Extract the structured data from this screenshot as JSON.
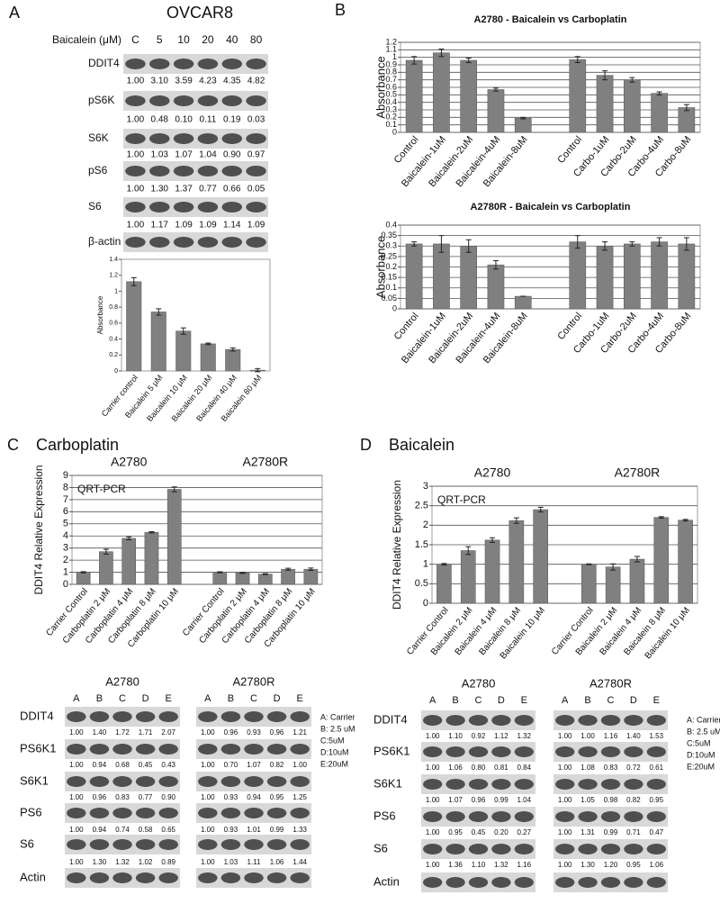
{
  "panels": [
    {
      "letter": "A",
      "title": "OVCAR8"
    },
    {
      "letter": "B"
    },
    {
      "letter": "C",
      "title": "Carboplatin"
    },
    {
      "letter": "D",
      "title": "Baicalein"
    }
  ],
  "blot_A": {
    "treatment": "Baicalein (μM)",
    "lanes": [
      "C",
      "5",
      "10",
      "20",
      "40",
      "80"
    ],
    "rows": [
      {
        "label": "DDIT4",
        "quant": [
          "1.00",
          "3.10",
          "3.59",
          "4.23",
          "4.35",
          "4.82"
        ]
      },
      {
        "label": "pS6K",
        "quant": [
          "1.00",
          "0.48",
          "0.10",
          "0.11",
          "0.19",
          "0.03"
        ]
      },
      {
        "label": "S6K",
        "quant": [
          "1.00",
          "1.03",
          "1.07",
          "1.04",
          "0.90",
          "0.97"
        ]
      },
      {
        "label": "pS6",
        "quant": [
          "1.00",
          "1.30",
          "1.37",
          "0.77",
          "0.66",
          "0.05"
        ]
      },
      {
        "label": "S6",
        "quant": [
          "1.00",
          "1.17",
          "1.09",
          "1.09",
          "1.14",
          "1.09"
        ]
      },
      {
        "label": "β-actin"
      }
    ]
  },
  "blot_C": {
    "row_labels": [
      "DDIT4",
      "PS6K1",
      "S6K1",
      "PS6",
      "S6",
      "Actin"
    ],
    "groups": [
      {
        "name": "A2780",
        "lanes": [
          "A",
          "B",
          "C",
          "D",
          "E"
        ],
        "quant": [
          [
            "1.00",
            "1.40",
            "1.72",
            "1.71",
            "2.07"
          ],
          [
            "1.00",
            "0.94",
            "0.68",
            "0.45",
            "0.43"
          ],
          [
            "1.00",
            "0.96",
            "0.83",
            "0.77",
            "0.90"
          ],
          [
            "1.00",
            "0.94",
            "0.74",
            "0.58",
            "0.65"
          ],
          [
            "1.00",
            "1.30",
            "1.32",
            "1.02",
            "0.89"
          ]
        ]
      },
      {
        "name": "A2780R",
        "lanes": [
          "A",
          "B",
          "C",
          "D",
          "E"
        ],
        "quant": [
          [
            "1.00",
            "0.96",
            "0.93",
            "0.96",
            "1.21"
          ],
          [
            "1.00",
            "0.70",
            "1.07",
            "0.82",
            "1.00"
          ],
          [
            "1.00",
            "0.93",
            "0.94",
            "0.95",
            "1.25"
          ],
          [
            "1.00",
            "0.93",
            "1.01",
            "0.99",
            "1.33"
          ],
          [
            "1.00",
            "1.03",
            "1.11",
            "1.06",
            "1.44"
          ]
        ]
      }
    ],
    "key": [
      "A: Carrier",
      "B: 2.5 uM",
      "C:5uM",
      "D:10uM",
      "E:20uM"
    ]
  },
  "blot_D": {
    "row_labels": [
      "DDIT4",
      "PS6K1",
      "S6K1",
      "PS6",
      "S6",
      "Actin"
    ],
    "groups": [
      {
        "name": "A2780",
        "lanes": [
          "A",
          "B",
          "C",
          "D",
          "E"
        ],
        "quant": [
          [
            "1.00",
            "1.10",
            "0.92",
            "1.12",
            "1.32"
          ],
          [
            "1.00",
            "1.06",
            "0.80",
            "0.81",
            "0.84"
          ],
          [
            "1.00",
            "1.07",
            "0.96",
            "0.99",
            "1.04"
          ],
          [
            "1.00",
            "0.95",
            "0.45",
            "0.20",
            "0.27"
          ],
          [
            "1.00",
            "1.36",
            "1.10",
            "1.32",
            "1.16"
          ]
        ]
      },
      {
        "name": "A2780R",
        "lanes": [
          "A",
          "B",
          "C",
          "D",
          "E"
        ],
        "quant": [
          [
            "1.00",
            "1.00",
            "1.16",
            "1.40",
            "1.53"
          ],
          [
            "1.00",
            "1.08",
            "0.83",
            "0.72",
            "0.61"
          ],
          [
            "1.00",
            "1.05",
            "0.98",
            "0.82",
            "0.95"
          ],
          [
            "1.00",
            "1.31",
            "0.99",
            "0.71",
            "0.47"
          ],
          [
            "1.00",
            "1.30",
            "1.20",
            "0.95",
            "1.06"
          ]
        ]
      }
    ],
    "key": [
      "A: Carrier",
      "B: 2.5 uM",
      "C:5uM",
      "D:10uM",
      "E:20uM"
    ]
  },
  "chart_data": [
    {
      "type": "bar",
      "ylabel": "Absorbance",
      "categories": [
        "Carrier control",
        "Baicalein 5 μM",
        "Baicalein 10 μM",
        "Baicalein 20 μM",
        "Baicalein 40 μM",
        "Baicalein 80 μM"
      ],
      "values": [
        1.12,
        0.74,
        0.5,
        0.34,
        0.27,
        0.01
      ],
      "errors": [
        0.05,
        0.04,
        0.04,
        0.01,
        0.02,
        0.02
      ],
      "color": "#808080",
      "ylim": [
        0,
        1.4
      ],
      "yticks": [
        0,
        0.2,
        0.4,
        0.6,
        0.8,
        1,
        1.2,
        1.4
      ],
      "grid": false
    },
    {
      "type": "bar",
      "title": "A2780 - Baicalein vs Carboplatin",
      "ylabel": "Absorbance",
      "categories": [
        "Control",
        "Baicalein-1uM",
        "Baicalein-2uM",
        "Baicalein-4uM",
        "Baicalein-8uM",
        null,
        "Control",
        "Carbo-1uM",
        "Carbo-2uM",
        "Carbo-4uM",
        "Carbo-8uM"
      ],
      "values": [
        0.96,
        1.06,
        0.96,
        0.57,
        0.19,
        null,
        0.97,
        0.76,
        0.7,
        0.52,
        0.33
      ],
      "errors": [
        0.05,
        0.05,
        0.03,
        0.02,
        0.01,
        null,
        0.04,
        0.06,
        0.03,
        0.02,
        0.04
      ],
      "color": "#808080",
      "ylim": [
        0,
        1.2
      ],
      "yticks": [
        0,
        0.1,
        0.2,
        0.3,
        0.4,
        0.5,
        0.6,
        0.7,
        0.8,
        0.9,
        1,
        1.1,
        1.2
      ],
      "grid": true
    },
    {
      "type": "bar",
      "title": "A2780R - Baicalein vs Carboplatin",
      "ylabel": "Absorbance",
      "categories": [
        "Control",
        "Baicalein-1uM",
        "Baicalein-2uM",
        "Baicalein-4uM",
        "Baicalein-8uM",
        null,
        "Control",
        "Carbo-1uM",
        "Carbo-2uM",
        "Carbo-4uM",
        "Carbo-8uM"
      ],
      "values": [
        0.31,
        0.31,
        0.3,
        0.21,
        0.06,
        null,
        0.32,
        0.3,
        0.31,
        0.32,
        0.31
      ],
      "errors": [
        0.01,
        0.04,
        0.03,
        0.02,
        0.0,
        null,
        0.03,
        0.02,
        0.01,
        0.02,
        0.03
      ],
      "color": "#808080",
      "ylim": [
        0,
        0.4
      ],
      "yticks": [
        0,
        0.05,
        0.1,
        0.15,
        0.2,
        0.25,
        0.3,
        0.35,
        0.4
      ],
      "grid": true
    },
    {
      "type": "bar",
      "ylabel": "DDIT4 Relative Expression",
      "annotation": "QRT-PCR",
      "group_labels": [
        "A2780",
        "A2780R"
      ],
      "categories": [
        "Carrier Control",
        "Carboplatin 2 μM",
        "Carboplatin 4 μM",
        "Carboplatin 8 μM",
        "Carboplatin 10 μM",
        null,
        "Carrier Control",
        "Carboplatin 2 μM",
        "Carboplatin 4 μM",
        "Carboplatin 8 μM",
        "Carboplatin 10 μM"
      ],
      "values": [
        1.0,
        2.7,
        3.8,
        4.3,
        7.85,
        null,
        1.0,
        0.95,
        0.85,
        1.25,
        1.25
      ],
      "errors": [
        0.05,
        0.2,
        0.12,
        0.05,
        0.2,
        null,
        0.04,
        0.05,
        0.04,
        0.08,
        0.1
      ],
      "color": "#808080",
      "ylim": [
        0,
        9
      ],
      "yticks": [
        0,
        1,
        2,
        3,
        4,
        5,
        6,
        7,
        8,
        9
      ],
      "grid": true
    },
    {
      "type": "bar",
      "ylabel": "DDIT4 Relative Expression",
      "annotation": "QRT-PCR",
      "group_labels": [
        "A2780",
        "A2780R"
      ],
      "categories": [
        "Carrier Control",
        "Baicalein 2 μM",
        "Baicalein 4 μM",
        "Baicalein 8 μM",
        "Baicalein 10 μM",
        null,
        "Carrier Control",
        "Baicalein 2 μM",
        "Baicalein 4 μM",
        "Baicalein 8 μM",
        "Baicalein 10 μM"
      ],
      "values": [
        1.0,
        1.35,
        1.62,
        2.12,
        2.4,
        null,
        1.0,
        0.93,
        1.13,
        2.2,
        2.13
      ],
      "errors": [
        0.02,
        0.1,
        0.06,
        0.07,
        0.06,
        null,
        0.01,
        0.08,
        0.07,
        0.02,
        0.02
      ],
      "color": "#808080",
      "ylim": [
        0,
        3
      ],
      "yticks": [
        0,
        0.5,
        1,
        1.5,
        2,
        2.5,
        3
      ],
      "grid": true
    }
  ]
}
